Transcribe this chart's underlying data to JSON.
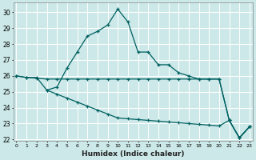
{
  "xlabel": "Humidex (Indice chaleur)",
  "bg_color": "#cce8e8",
  "grid_color": "#b8d8d8",
  "line_color": "#006060",
  "line1_x": [
    0,
    1,
    2,
    3,
    4,
    5,
    6,
    7,
    8,
    9,
    10,
    11,
    12,
    13,
    14,
    15,
    16,
    17,
    18,
    19,
    20,
    21,
    22,
    23
  ],
  "line1_y": [
    26.0,
    25.9,
    25.9,
    25.1,
    25.3,
    26.5,
    27.5,
    28.5,
    28.8,
    29.2,
    30.2,
    29.4,
    27.5,
    27.5,
    26.7,
    26.7,
    26.2,
    26.0,
    25.8,
    25.8,
    25.8,
    23.2,
    22.1,
    22.8
  ],
  "line2_x": [
    0,
    1,
    2,
    3,
    4,
    5,
    6,
    7,
    8,
    9,
    10,
    11,
    12,
    13,
    14,
    15,
    16,
    17,
    18,
    19,
    20,
    21,
    22,
    23
  ],
  "line2_y": [
    26.0,
    25.9,
    25.85,
    25.8,
    25.8,
    25.8,
    25.8,
    25.8,
    25.8,
    25.8,
    25.8,
    25.8,
    25.8,
    25.8,
    25.8,
    25.8,
    25.8,
    25.8,
    25.8,
    25.8,
    25.8,
    23.2,
    22.1,
    22.8
  ],
  "line3_x": [
    3,
    4,
    5,
    6,
    7,
    8,
    9,
    10,
    11,
    12,
    13,
    14,
    15,
    16,
    17,
    18,
    19,
    20,
    21,
    22,
    23
  ],
  "line3_y": [
    25.1,
    24.85,
    24.6,
    24.35,
    24.1,
    23.85,
    23.6,
    23.35,
    23.3,
    23.25,
    23.2,
    23.15,
    23.1,
    23.05,
    23.0,
    22.95,
    22.9,
    22.85,
    23.2,
    22.1,
    22.8
  ],
  "ylim": [
    21.9,
    30.6
  ],
  "yticks": [
    22,
    23,
    24,
    25,
    26,
    27,
    28,
    29,
    30
  ],
  "xlim": [
    -0.3,
    23.3
  ],
  "xticks": [
    0,
    1,
    2,
    3,
    4,
    5,
    6,
    7,
    8,
    9,
    10,
    11,
    12,
    13,
    14,
    15,
    16,
    17,
    18,
    19,
    20,
    21,
    22,
    23
  ]
}
